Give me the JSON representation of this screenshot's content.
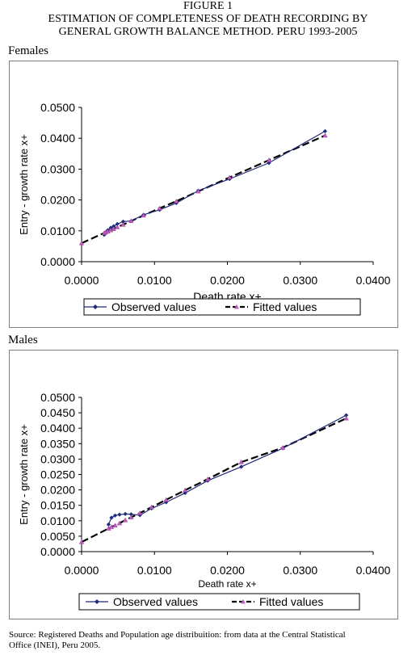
{
  "figure": {
    "number": "FIGURE 1",
    "title_line1": "ESTIMATION OF COMPLETENESS OF DEATH RECORDING BY",
    "title_line2": "GENERAL GROWTH BALANCE METHOD. PERU 1993-2005"
  },
  "panels": {
    "females_label": "Females",
    "males_label": "Males"
  },
  "source": {
    "line1": "Source:  Registered Deaths and Population age distribuition: from data at the Central Statistical",
    "line2": "Office (INEI), Peru 2005."
  },
  "chart_data": [
    {
      "type": "line",
      "panel": "Females",
      "xlabel": "Death rate x+",
      "ylabel": "Entry - growth rate x+",
      "xlim": [
        0,
        0.04
      ],
      "ylim": [
        0,
        0.05
      ],
      "xticks": [
        "0.0000",
        "0.0100",
        "0.0200",
        "0.0300",
        "0.0400"
      ],
      "yticks": [
        "0.0000",
        "0.0100",
        "0.0200",
        "0.0300",
        "0.0400",
        "0.0500"
      ],
      "grid": false,
      "legend": "bottom",
      "colors": {
        "observed": "#1f2a7a",
        "fitted_line": "#000000",
        "fitted_marker": "#c05bc0"
      },
      "series": [
        {
          "name": "Observed values",
          "style": "solid-diamond",
          "x": [
            0.0031,
            0.0033,
            0.0036,
            0.004,
            0.0044,
            0.0049,
            0.0057,
            0.0068,
            0.0085,
            0.0107,
            0.013,
            0.016,
            0.0203,
            0.0257,
            0.0334
          ],
          "y": [
            0.0087,
            0.0095,
            0.0102,
            0.011,
            0.0115,
            0.0122,
            0.013,
            0.0132,
            0.0152,
            0.0168,
            0.019,
            0.023,
            0.0268,
            0.032,
            0.0423
          ]
        },
        {
          "name": "Fitted values",
          "style": "dashed-triangle",
          "x": [
            0.0,
            0.0031,
            0.0033,
            0.0036,
            0.004,
            0.0044,
            0.0049,
            0.0057,
            0.0068,
            0.0085,
            0.0107,
            0.013,
            0.016,
            0.0203,
            0.0257,
            0.0334
          ],
          "y": [
            0.006,
            0.0093,
            0.0095,
            0.0098,
            0.0102,
            0.0106,
            0.0112,
            0.012,
            0.0132,
            0.015,
            0.0173,
            0.0196,
            0.0228,
            0.0273,
            0.0329,
            0.0409
          ]
        }
      ]
    },
    {
      "type": "line",
      "panel": "Males",
      "xlabel": "Death rate x+",
      "ylabel": "Entry - growth rate x+",
      "xlim": [
        0,
        0.04
      ],
      "ylim": [
        0,
        0.05
      ],
      "xticks": [
        "0.0000",
        "0.0100",
        "0.0200",
        "0.0300",
        "0.0400"
      ],
      "yticks": [
        "0.0000",
        "0.0050",
        "0.0100",
        "0.0150",
        "0.0200",
        "0.0250",
        "0.0300",
        "0.0350",
        "0.0400",
        "0.0450",
        "0.0500"
      ],
      "grid": false,
      "legend": "bottom",
      "colors": {
        "observed": "#1f2a7a",
        "fitted_line": "#000000",
        "fitted_marker": "#c05bc0"
      },
      "series": [
        {
          "name": "Observed values",
          "style": "solid-diamond",
          "x": [
            0.0037,
            0.0041,
            0.0046,
            0.0052,
            0.006,
            0.0068,
            0.008,
            0.0096,
            0.0116,
            0.0142,
            0.0173,
            0.0219,
            0.0276,
            0.0363
          ],
          "y": [
            0.0088,
            0.011,
            0.0117,
            0.012,
            0.0122,
            0.0121,
            0.0118,
            0.014,
            0.016,
            0.019,
            0.023,
            0.0275,
            0.0335,
            0.0442
          ]
        },
        {
          "name": "Fitted values",
          "style": "dashed-triangle",
          "x": [
            0.0,
            0.0037,
            0.0041,
            0.0046,
            0.0052,
            0.006,
            0.0068,
            0.008,
            0.0096,
            0.0116,
            0.0142,
            0.0173,
            0.0219,
            0.0276,
            0.0363
          ],
          "y": [
            0.0031,
            0.0075,
            0.008,
            0.0085,
            0.0092,
            0.0102,
            0.0111,
            0.0125,
            0.0144,
            0.0168,
            0.0199,
            0.0235,
            0.029,
            0.0337,
            0.0432
          ]
        }
      ]
    }
  ]
}
